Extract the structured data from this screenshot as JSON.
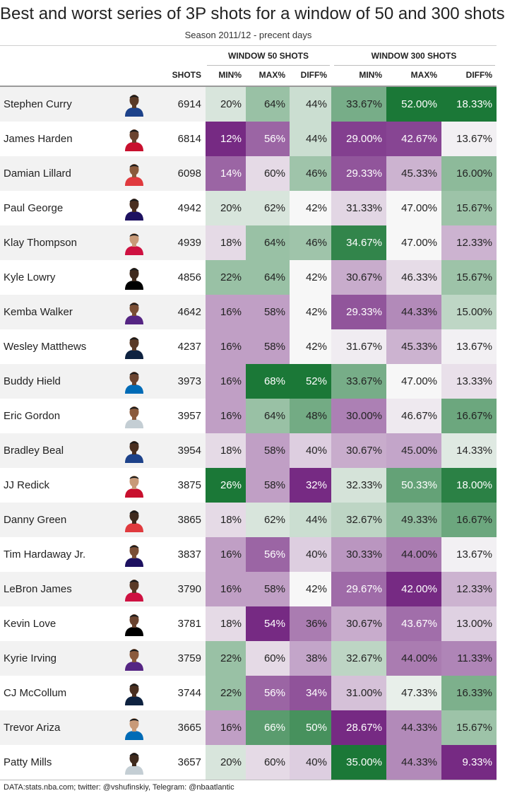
{
  "title": "Best and worst series of 3P shots for a window of 50 and 300 shots",
  "subtitle": "Season 2011/12 - precent days",
  "groups": {
    "w50": "WINDOW 50 SHOTS",
    "w300": "WINDOW 300 SHOTS"
  },
  "headers": {
    "shots": "SHOTS",
    "min50": "MIN%",
    "max50": "MAX%",
    "diff50": "DIFF%",
    "min300": "MIN%",
    "max300": "MAX%",
    "diff300": "DIFF%"
  },
  "footer": "DATA:stats.nba.com; twitter: @vshufinskiy, Telegram: @nbaatlantic",
  "colors": {
    "green_dark": "#1b7837",
    "white_mid": "#f7f7f7",
    "purple_dark": "#762a83",
    "row_stripe": "#f2f2f2"
  },
  "chart_data": {
    "type": "table",
    "columns": [
      "",
      "",
      "SHOTS",
      "MIN%",
      "MAX%",
      "DIFF%",
      "MIN%",
      "MAX%",
      "DIFF%"
    ],
    "column_groups": [
      "WINDOW 50 SHOTS",
      "WINDOW 300 SHOTS"
    ],
    "color_scale": "diverging purple-white-green per column",
    "rows": [
      {
        "name": "Stephen Curry",
        "shots": "6914",
        "min50": "20%",
        "max50": "64%",
        "diff50": "44%",
        "min300": "33.67%",
        "max300": "52.00%",
        "diff300": "18.33%"
      },
      {
        "name": "James Harden",
        "shots": "6814",
        "min50": "12%",
        "max50": "56%",
        "diff50": "44%",
        "min300": "29.00%",
        "max300": "42.67%",
        "diff300": "13.67%"
      },
      {
        "name": "Damian Lillard",
        "shots": "6098",
        "min50": "14%",
        "max50": "60%",
        "diff50": "46%",
        "min300": "29.33%",
        "max300": "45.33%",
        "diff300": "16.00%"
      },
      {
        "name": "Paul George",
        "shots": "4942",
        "min50": "20%",
        "max50": "62%",
        "diff50": "42%",
        "min300": "31.33%",
        "max300": "47.00%",
        "diff300": "15.67%"
      },
      {
        "name": "Klay Thompson",
        "shots": "4939",
        "min50": "18%",
        "max50": "64%",
        "diff50": "46%",
        "min300": "34.67%",
        "max300": "47.00%",
        "diff300": "12.33%"
      },
      {
        "name": "Kyle Lowry",
        "shots": "4856",
        "min50": "22%",
        "max50": "64%",
        "diff50": "42%",
        "min300": "30.67%",
        "max300": "46.33%",
        "diff300": "15.67%"
      },
      {
        "name": "Kemba Walker",
        "shots": "4642",
        "min50": "16%",
        "max50": "58%",
        "diff50": "42%",
        "min300": "29.33%",
        "max300": "44.33%",
        "diff300": "15.00%"
      },
      {
        "name": "Wesley Matthews",
        "shots": "4237",
        "min50": "16%",
        "max50": "58%",
        "diff50": "42%",
        "min300": "31.67%",
        "max300": "45.33%",
        "diff300": "13.67%"
      },
      {
        "name": "Buddy Hield",
        "shots": "3973",
        "min50": "16%",
        "max50": "68%",
        "diff50": "52%",
        "min300": "33.67%",
        "max300": "47.00%",
        "diff300": "13.33%"
      },
      {
        "name": "Eric Gordon",
        "shots": "3957",
        "min50": "16%",
        "max50": "64%",
        "diff50": "48%",
        "min300": "30.00%",
        "max300": "46.67%",
        "diff300": "16.67%"
      },
      {
        "name": "Bradley Beal",
        "shots": "3954",
        "min50": "18%",
        "max50": "58%",
        "diff50": "40%",
        "min300": "30.67%",
        "max300": "45.00%",
        "diff300": "14.33%"
      },
      {
        "name": "JJ Redick",
        "shots": "3875",
        "min50": "26%",
        "max50": "58%",
        "diff50": "32%",
        "min300": "32.33%",
        "max300": "50.33%",
        "diff300": "18.00%"
      },
      {
        "name": "Danny Green",
        "shots": "3865",
        "min50": "18%",
        "max50": "62%",
        "diff50": "44%",
        "min300": "32.67%",
        "max300": "49.33%",
        "diff300": "16.67%"
      },
      {
        "name": "Tim Hardaway Jr.",
        "shots": "3837",
        "min50": "16%",
        "max50": "56%",
        "diff50": "40%",
        "min300": "30.33%",
        "max300": "44.00%",
        "diff300": "13.67%"
      },
      {
        "name": "LeBron James",
        "shots": "3790",
        "min50": "16%",
        "max50": "58%",
        "diff50": "42%",
        "min300": "29.67%",
        "max300": "42.00%",
        "diff300": "12.33%"
      },
      {
        "name": "Kevin Love",
        "shots": "3781",
        "min50": "18%",
        "max50": "54%",
        "diff50": "36%",
        "min300": "30.67%",
        "max300": "43.67%",
        "diff300": "13.00%"
      },
      {
        "name": "Kyrie Irving",
        "shots": "3759",
        "min50": "22%",
        "max50": "60%",
        "diff50": "38%",
        "min300": "32.67%",
        "max300": "44.00%",
        "diff300": "11.33%"
      },
      {
        "name": "CJ McCollum",
        "shots": "3744",
        "min50": "22%",
        "max50": "56%",
        "diff50": "34%",
        "min300": "31.00%",
        "max300": "47.33%",
        "diff300": "16.33%"
      },
      {
        "name": "Trevor Ariza",
        "shots": "3665",
        "min50": "16%",
        "max50": "66%",
        "diff50": "50%",
        "min300": "28.67%",
        "max300": "44.33%",
        "diff300": "15.67%"
      },
      {
        "name": "Patty Mills",
        "shots": "3657",
        "min50": "20%",
        "max50": "60%",
        "diff50": "40%",
        "min300": "35.00%",
        "max300": "44.33%",
        "diff300": "9.33%"
      }
    ]
  }
}
